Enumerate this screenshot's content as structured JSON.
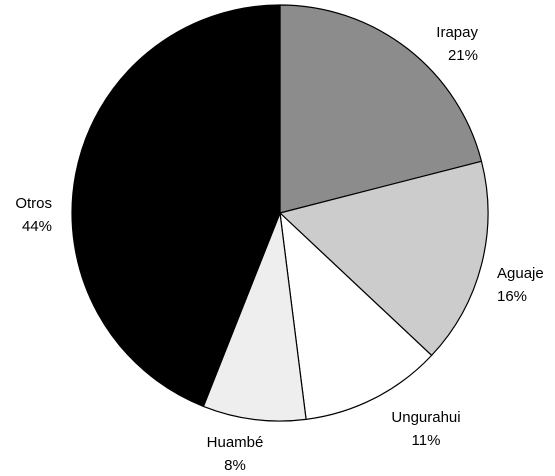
{
  "chart_data": {
    "type": "pie",
    "title": "",
    "start": "12 o'clock",
    "direction": "clockwise",
    "slices": [
      {
        "label": "Irapay",
        "percent_label": "21%",
        "value": 21,
        "color": "#8c8c8c"
      },
      {
        "label": "Aguaje",
        "percent_label": "16%",
        "value": 16,
        "color": "#cccccc"
      },
      {
        "label": "Ungurahui",
        "percent_label": "11%",
        "value": 11,
        "color": "#ffffff"
      },
      {
        "label": "Huambé",
        "percent_label": "8%",
        "value": 8,
        "color": "#eeeeee"
      },
      {
        "label": "Otros",
        "percent_label": "44%",
        "value": 44,
        "color": "#000000"
      }
    ]
  }
}
